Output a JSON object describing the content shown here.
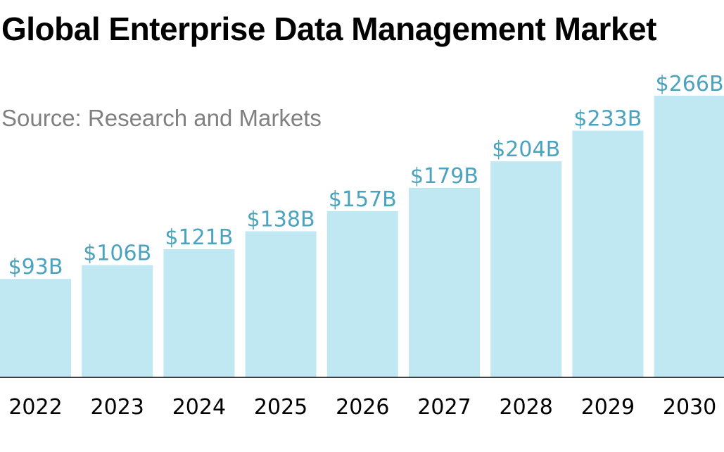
{
  "chart_data": {
    "type": "bar",
    "title": "Global Enterprise Data Management Market",
    "subtitle": "Source: Research and Markets",
    "categories": [
      "2022",
      "2023",
      "2024",
      "2025",
      "2026",
      "2027",
      "2028",
      "2029",
      "2030"
    ],
    "values": [
      93,
      106,
      121,
      138,
      157,
      179,
      204,
      233,
      266
    ],
    "data_labels": [
      "$93B",
      "$106B",
      "$121B",
      "$138B",
      "$157B",
      "$179B",
      "$204B",
      "$233B",
      "$266B"
    ],
    "xlabel": "",
    "ylabel": "",
    "ylim": [
      0,
      266
    ],
    "grid": false,
    "legend": "none",
    "colors": {
      "bar": "#bfe8f2",
      "value_label": "#4aa3bf",
      "axis": "#000000"
    }
  }
}
